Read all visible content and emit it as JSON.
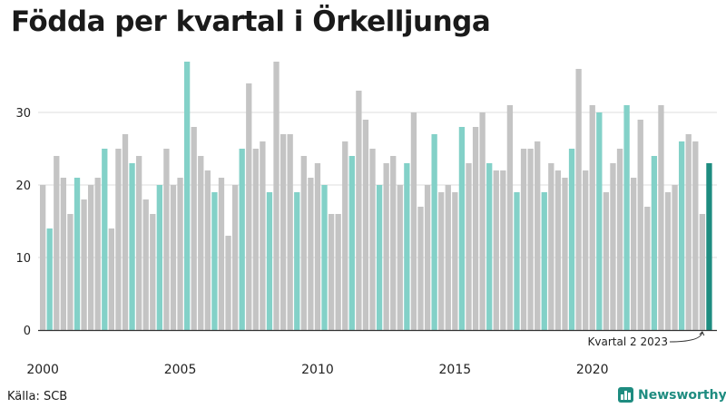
{
  "title": "Födda per kvartal i Örkelljunga",
  "source": "Källa: SCB",
  "brand": {
    "name": "Newsworthy",
    "icon": "bar-chart-logo-icon"
  },
  "colors": {
    "regular": "#c4c4c4",
    "highlight": "#83d1c8",
    "latest": "#1e8c80",
    "grid": "#dcdcdc",
    "axis": "#333333"
  },
  "chart_data": {
    "type": "bar",
    "title": "Födda per kvartal i Örkelljunga",
    "xlabel": "",
    "ylabel": "",
    "ylim": [
      0,
      37
    ],
    "yticks": [
      0,
      10,
      20,
      30
    ],
    "xticks": [
      "2000",
      "2005",
      "2010",
      "2015",
      "2020"
    ],
    "grid": true,
    "series": [
      {
        "values": [
          20,
          14,
          24,
          21,
          16,
          21,
          18,
          20,
          21,
          25,
          14,
          25,
          27,
          23,
          24,
          18,
          16,
          20,
          25,
          20,
          21,
          37,
          28,
          24,
          22,
          19,
          21,
          13,
          20,
          25,
          34,
          25,
          26,
          19,
          37,
          27,
          27,
          19,
          24,
          21,
          23,
          20,
          16,
          16,
          26,
          24,
          33,
          29,
          25,
          20,
          23,
          24,
          20,
          23,
          30,
          17,
          20,
          27,
          19,
          20,
          19,
          28,
          23,
          28,
          30,
          23,
          22,
          22,
          31,
          19,
          25,
          25,
          26,
          19,
          23,
          22,
          21,
          25,
          36,
          22,
          31,
          30,
          19,
          23,
          25,
          31,
          21,
          29,
          17,
          24,
          31,
          19,
          20,
          26,
          27,
          26,
          16,
          23
        ]
      }
    ],
    "highlight_quarter": 2,
    "annotation": "Kvartal 2 2023"
  }
}
